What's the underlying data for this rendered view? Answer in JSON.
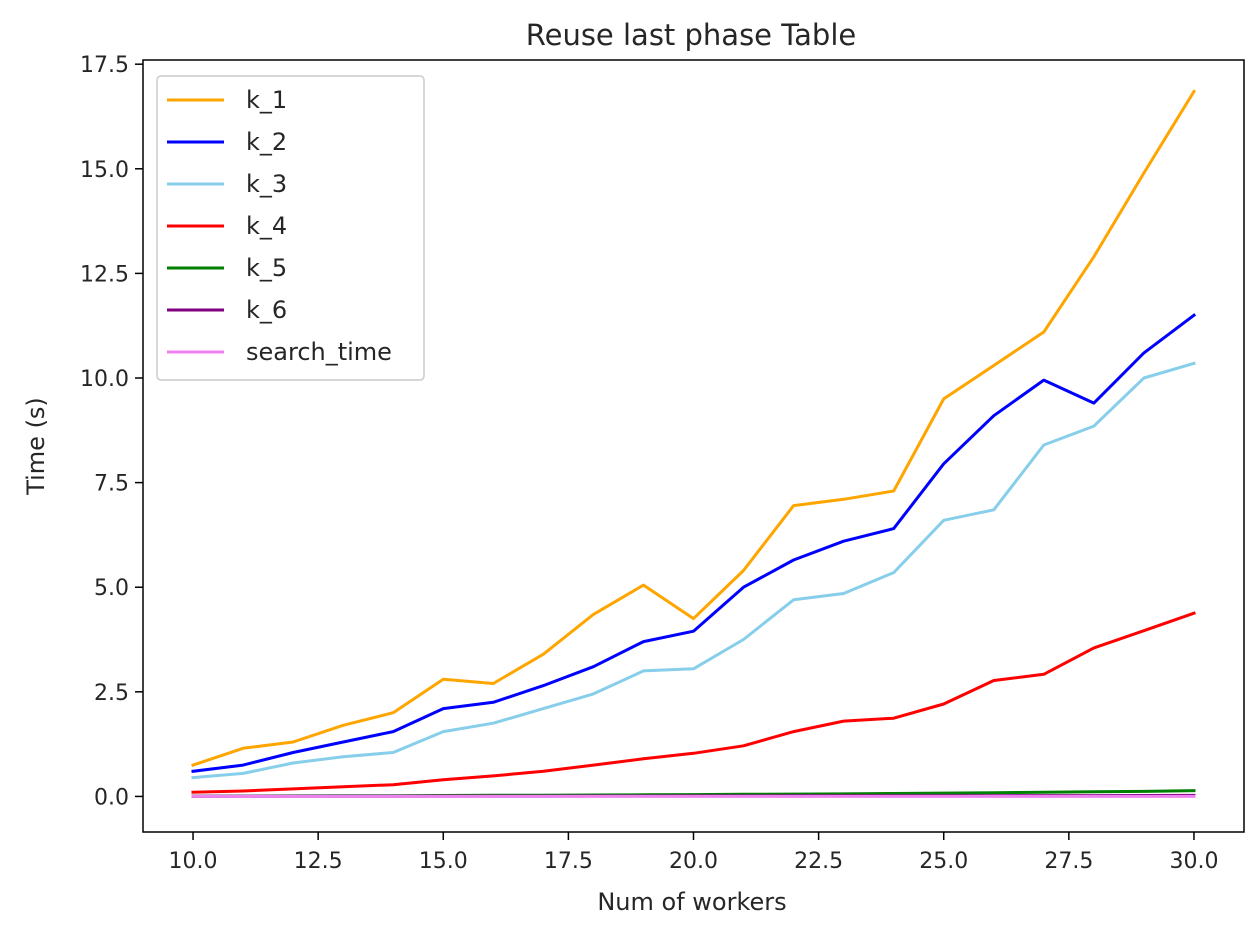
{
  "chart_data": {
    "type": "line",
    "title": "Reuse last phase Table",
    "xlabel": "Num of workers",
    "ylabel": "Time (s)",
    "xlim": [
      9.0,
      31.0
    ],
    "ylim": [
      -0.85,
      17.6
    ],
    "xticks": [
      10.0,
      12.5,
      15.0,
      17.5,
      20.0,
      22.5,
      25.0,
      27.5,
      30.0
    ],
    "xtick_labels": [
      "10.0",
      "12.5",
      "15.0",
      "17.5",
      "20.0",
      "22.5",
      "25.0",
      "27.5",
      "30.0"
    ],
    "yticks": [
      0.0,
      2.5,
      5.0,
      7.5,
      10.0,
      12.5,
      15.0,
      17.5
    ],
    "ytick_labels": [
      "0.0",
      "2.5",
      "5.0",
      "7.5",
      "10.0",
      "12.5",
      "15.0",
      "17.5"
    ],
    "grid": false,
    "legend_position": "top-left",
    "x": [
      10,
      11,
      12,
      13,
      14,
      15,
      16,
      17,
      18,
      19,
      20,
      21,
      22,
      23,
      24,
      25,
      26,
      27,
      28,
      29,
      30
    ],
    "series": [
      {
        "name": "k_1",
        "color": "#ffa500",
        "values": [
          0.75,
          1.15,
          1.3,
          1.7,
          2.0,
          2.8,
          2.7,
          3.4,
          4.35,
          5.05,
          4.25,
          5.4,
          6.95,
          7.1,
          7.3,
          9.5,
          10.3,
          11.1,
          12.9,
          14.9,
          16.85
        ]
      },
      {
        "name": "k_2",
        "color": "#0000ff",
        "values": [
          0.6,
          0.75,
          1.05,
          1.3,
          1.55,
          2.1,
          2.25,
          2.65,
          3.1,
          3.7,
          3.95,
          5.0,
          5.65,
          6.1,
          6.4,
          7.95,
          9.1,
          9.95,
          9.4,
          10.6,
          11.5
        ]
      },
      {
        "name": "k_3",
        "color": "#87ceeb",
        "values": [
          0.45,
          0.55,
          0.8,
          0.95,
          1.05,
          1.55,
          1.75,
          2.1,
          2.45,
          3.0,
          3.05,
          3.75,
          4.7,
          4.85,
          5.35,
          6.6,
          6.85,
          8.4,
          8.85,
          10.0,
          10.35
        ]
      },
      {
        "name": "k_4",
        "color": "#ff0000",
        "values": [
          0.1,
          0.13,
          0.18,
          0.23,
          0.28,
          0.4,
          0.49,
          0.6,
          0.75,
          0.9,
          1.03,
          1.21,
          1.55,
          1.8,
          1.87,
          2.21,
          2.77,
          2.92,
          3.55,
          3.96,
          4.38
        ]
      },
      {
        "name": "k_5",
        "color": "#008000",
        "values": [
          0.005,
          0.01,
          0.012,
          0.015,
          0.018,
          0.022,
          0.026,
          0.03,
          0.035,
          0.04,
          0.045,
          0.05,
          0.055,
          0.06,
          0.07,
          0.08,
          0.09,
          0.1,
          0.11,
          0.12,
          0.14
        ]
      },
      {
        "name": "k_6",
        "color": "#800080",
        "values": [
          0.002,
          0.003,
          0.004,
          0.005,
          0.006,
          0.007,
          0.008,
          0.009,
          0.01,
          0.011,
          0.012,
          0.013,
          0.014,
          0.015,
          0.016,
          0.017,
          0.018,
          0.019,
          0.02,
          0.022,
          0.025
        ]
      },
      {
        "name": "search_time",
        "color": "#ee82ee",
        "values": [
          0.0,
          0.0,
          0.0,
          0.0,
          0.0,
          0.0,
          0.0,
          0.0,
          0.0,
          0.0,
          0.0,
          0.0,
          0.0,
          0.0,
          0.0,
          0.0,
          0.0,
          0.0,
          0.0,
          0.0,
          0.0
        ]
      }
    ]
  }
}
